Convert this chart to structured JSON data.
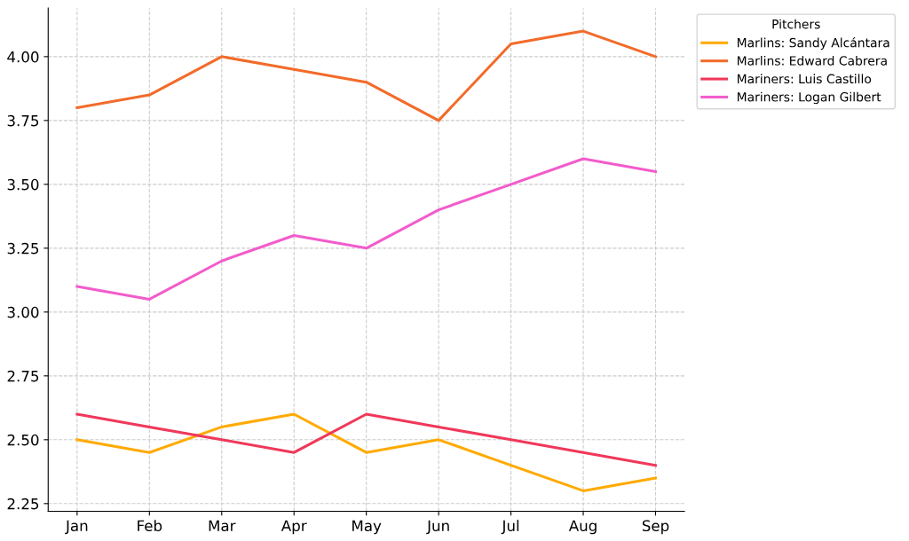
{
  "chart_data": {
    "type": "line",
    "categories": [
      "Jan",
      "Feb",
      "Mar",
      "Apr",
      "May",
      "Jun",
      "Jul",
      "Aug",
      "Sep"
    ],
    "series": [
      {
        "name": "Marlins: Sandy Alcántara",
        "color": "#ffaa00",
        "values": [
          2.5,
          2.45,
          2.55,
          2.6,
          2.45,
          2.5,
          2.4,
          2.3,
          2.35
        ]
      },
      {
        "name": "Marlins: Edward Cabrera",
        "color": "#f26b2a",
        "values": [
          3.8,
          3.85,
          4.0,
          3.95,
          3.9,
          3.75,
          4.05,
          4.1,
          4.0
        ]
      },
      {
        "name": "Mariners: Luis Castillo",
        "color": "#f0385a",
        "values": [
          2.6,
          2.55,
          2.5,
          2.45,
          2.6,
          2.55,
          2.5,
          2.45,
          2.4
        ]
      },
      {
        "name": "Mariners: Logan Gilbert",
        "color": "#f25ccc",
        "values": [
          3.1,
          3.05,
          3.2,
          3.3,
          3.25,
          3.4,
          3.5,
          3.6,
          3.55
        ]
      }
    ],
    "legend_title": "Pitchers",
    "legend": "right",
    "ylim": [
      2.22,
      4.19
    ],
    "yticks": [
      {
        "value": 2.25,
        "label": "2.25"
      },
      {
        "value": 2.5,
        "label": "2.50"
      },
      {
        "value": 2.75,
        "label": "2.75"
      },
      {
        "value": 3.0,
        "label": "3.00"
      },
      {
        "value": 3.25,
        "label": "3.25"
      },
      {
        "value": 3.5,
        "label": "3.50"
      },
      {
        "value": 3.75,
        "label": "3.75"
      },
      {
        "value": 4.0,
        "label": "4.00"
      }
    ],
    "grid": true,
    "line_style": "solid",
    "marker": "none"
  }
}
